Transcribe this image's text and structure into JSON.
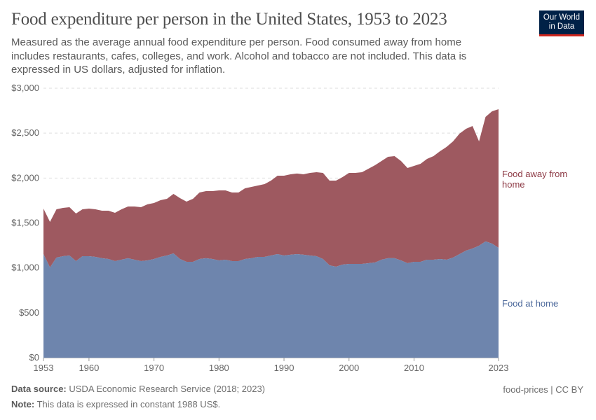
{
  "header": {
    "title": "Food expenditure per person in the United States, 1953 to 2023",
    "subtitle": "Measured as the average annual food expenditure per person. Food consumed away from home includes restaurants, cafes, colleges, and work. Alcohol and tobacco are not included. This data is expressed in US dollars, adjusted for inflation.",
    "logo": "Our World in Data"
  },
  "footer": {
    "source_label": "Data source:",
    "source": "USDA Economic Research Service (2018; 2023)",
    "note_label": "Note:",
    "note": "This data is expressed in constant 1988 US$.",
    "license": "food-prices | CC BY"
  },
  "colors": {
    "home": "#6e85ad",
    "away": "#9e5960",
    "home_label": "#4a679a",
    "away_label": "#8d3a45"
  },
  "chart_data": {
    "type": "area",
    "stacked": true,
    "title": "Food expenditure per person in the United States, 1953 to 2023",
    "xlabel": "",
    "ylabel": "",
    "ylim": [
      0,
      3000
    ],
    "xlim": [
      1953,
      2023
    ],
    "grid": "horizontal dashed",
    "legend": "right (inline labels)",
    "y_ticks": [
      "$0",
      "$500",
      "$1,000",
      "$1,500",
      "$2,000",
      "$2,500",
      "$3,000"
    ],
    "x_ticks": [
      "1953",
      "1960",
      "1970",
      "1980",
      "1990",
      "2000",
      "2010",
      "2023"
    ],
    "x": [
      1953,
      1954,
      1955,
      1956,
      1957,
      1958,
      1959,
      1960,
      1961,
      1962,
      1963,
      1964,
      1965,
      1966,
      1967,
      1968,
      1969,
      1970,
      1971,
      1972,
      1973,
      1974,
      1975,
      1976,
      1977,
      1978,
      1979,
      1980,
      1981,
      1982,
      1983,
      1984,
      1985,
      1986,
      1987,
      1988,
      1989,
      1990,
      1991,
      1992,
      1993,
      1994,
      1995,
      1996,
      1997,
      1998,
      1999,
      2000,
      2001,
      2002,
      2003,
      2004,
      2005,
      2006,
      2007,
      2008,
      2009,
      2010,
      2011,
      2012,
      2013,
      2014,
      2015,
      2016,
      2017,
      2018,
      2019,
      2020,
      2021,
      2022,
      2023
    ],
    "series": [
      {
        "name": "Food at home",
        "values": [
          1153,
          1005,
          1114,
          1130,
          1138,
          1075,
          1130,
          1130,
          1122,
          1107,
          1099,
          1075,
          1091,
          1107,
          1091,
          1075,
          1083,
          1099,
          1122,
          1138,
          1161,
          1099,
          1068,
          1068,
          1099,
          1107,
          1099,
          1083,
          1091,
          1075,
          1075,
          1099,
          1107,
          1122,
          1122,
          1138,
          1153,
          1138,
          1146,
          1153,
          1146,
          1138,
          1130,
          1099,
          1029,
          1013,
          1036,
          1044,
          1044,
          1044,
          1052,
          1060,
          1091,
          1107,
          1107,
          1083,
          1052,
          1068,
          1068,
          1091,
          1091,
          1099,
          1091,
          1114,
          1153,
          1192,
          1216,
          1247,
          1294,
          1270,
          1223
        ]
      },
      {
        "name": "Food away from home",
        "values": [
          507,
          507,
          538,
          538,
          537,
          530,
          522,
          530,
          530,
          529,
          537,
          538,
          561,
          576,
          592,
          600,
          624,
          623,
          631,
          631,
          662,
          678,
          670,
          701,
          740,
          748,
          756,
          779,
          771,
          764,
          764,
          787,
          794,
          795,
          810,
          833,
          873,
          888,
          896,
          897,
          896,
          919,
          935,
          958,
          942,
          958,
          974,
          1013,
          1013,
          1021,
          1052,
          1083,
          1099,
          1129,
          1137,
          1107,
          1060,
          1067,
          1090,
          1122,
          1153,
          1200,
          1255,
          1294,
          1341,
          1356,
          1363,
          1161,
          1387,
          1473,
          1543
        ]
      }
    ],
    "inline_labels": [
      "Food away from home",
      "Food at home"
    ]
  }
}
